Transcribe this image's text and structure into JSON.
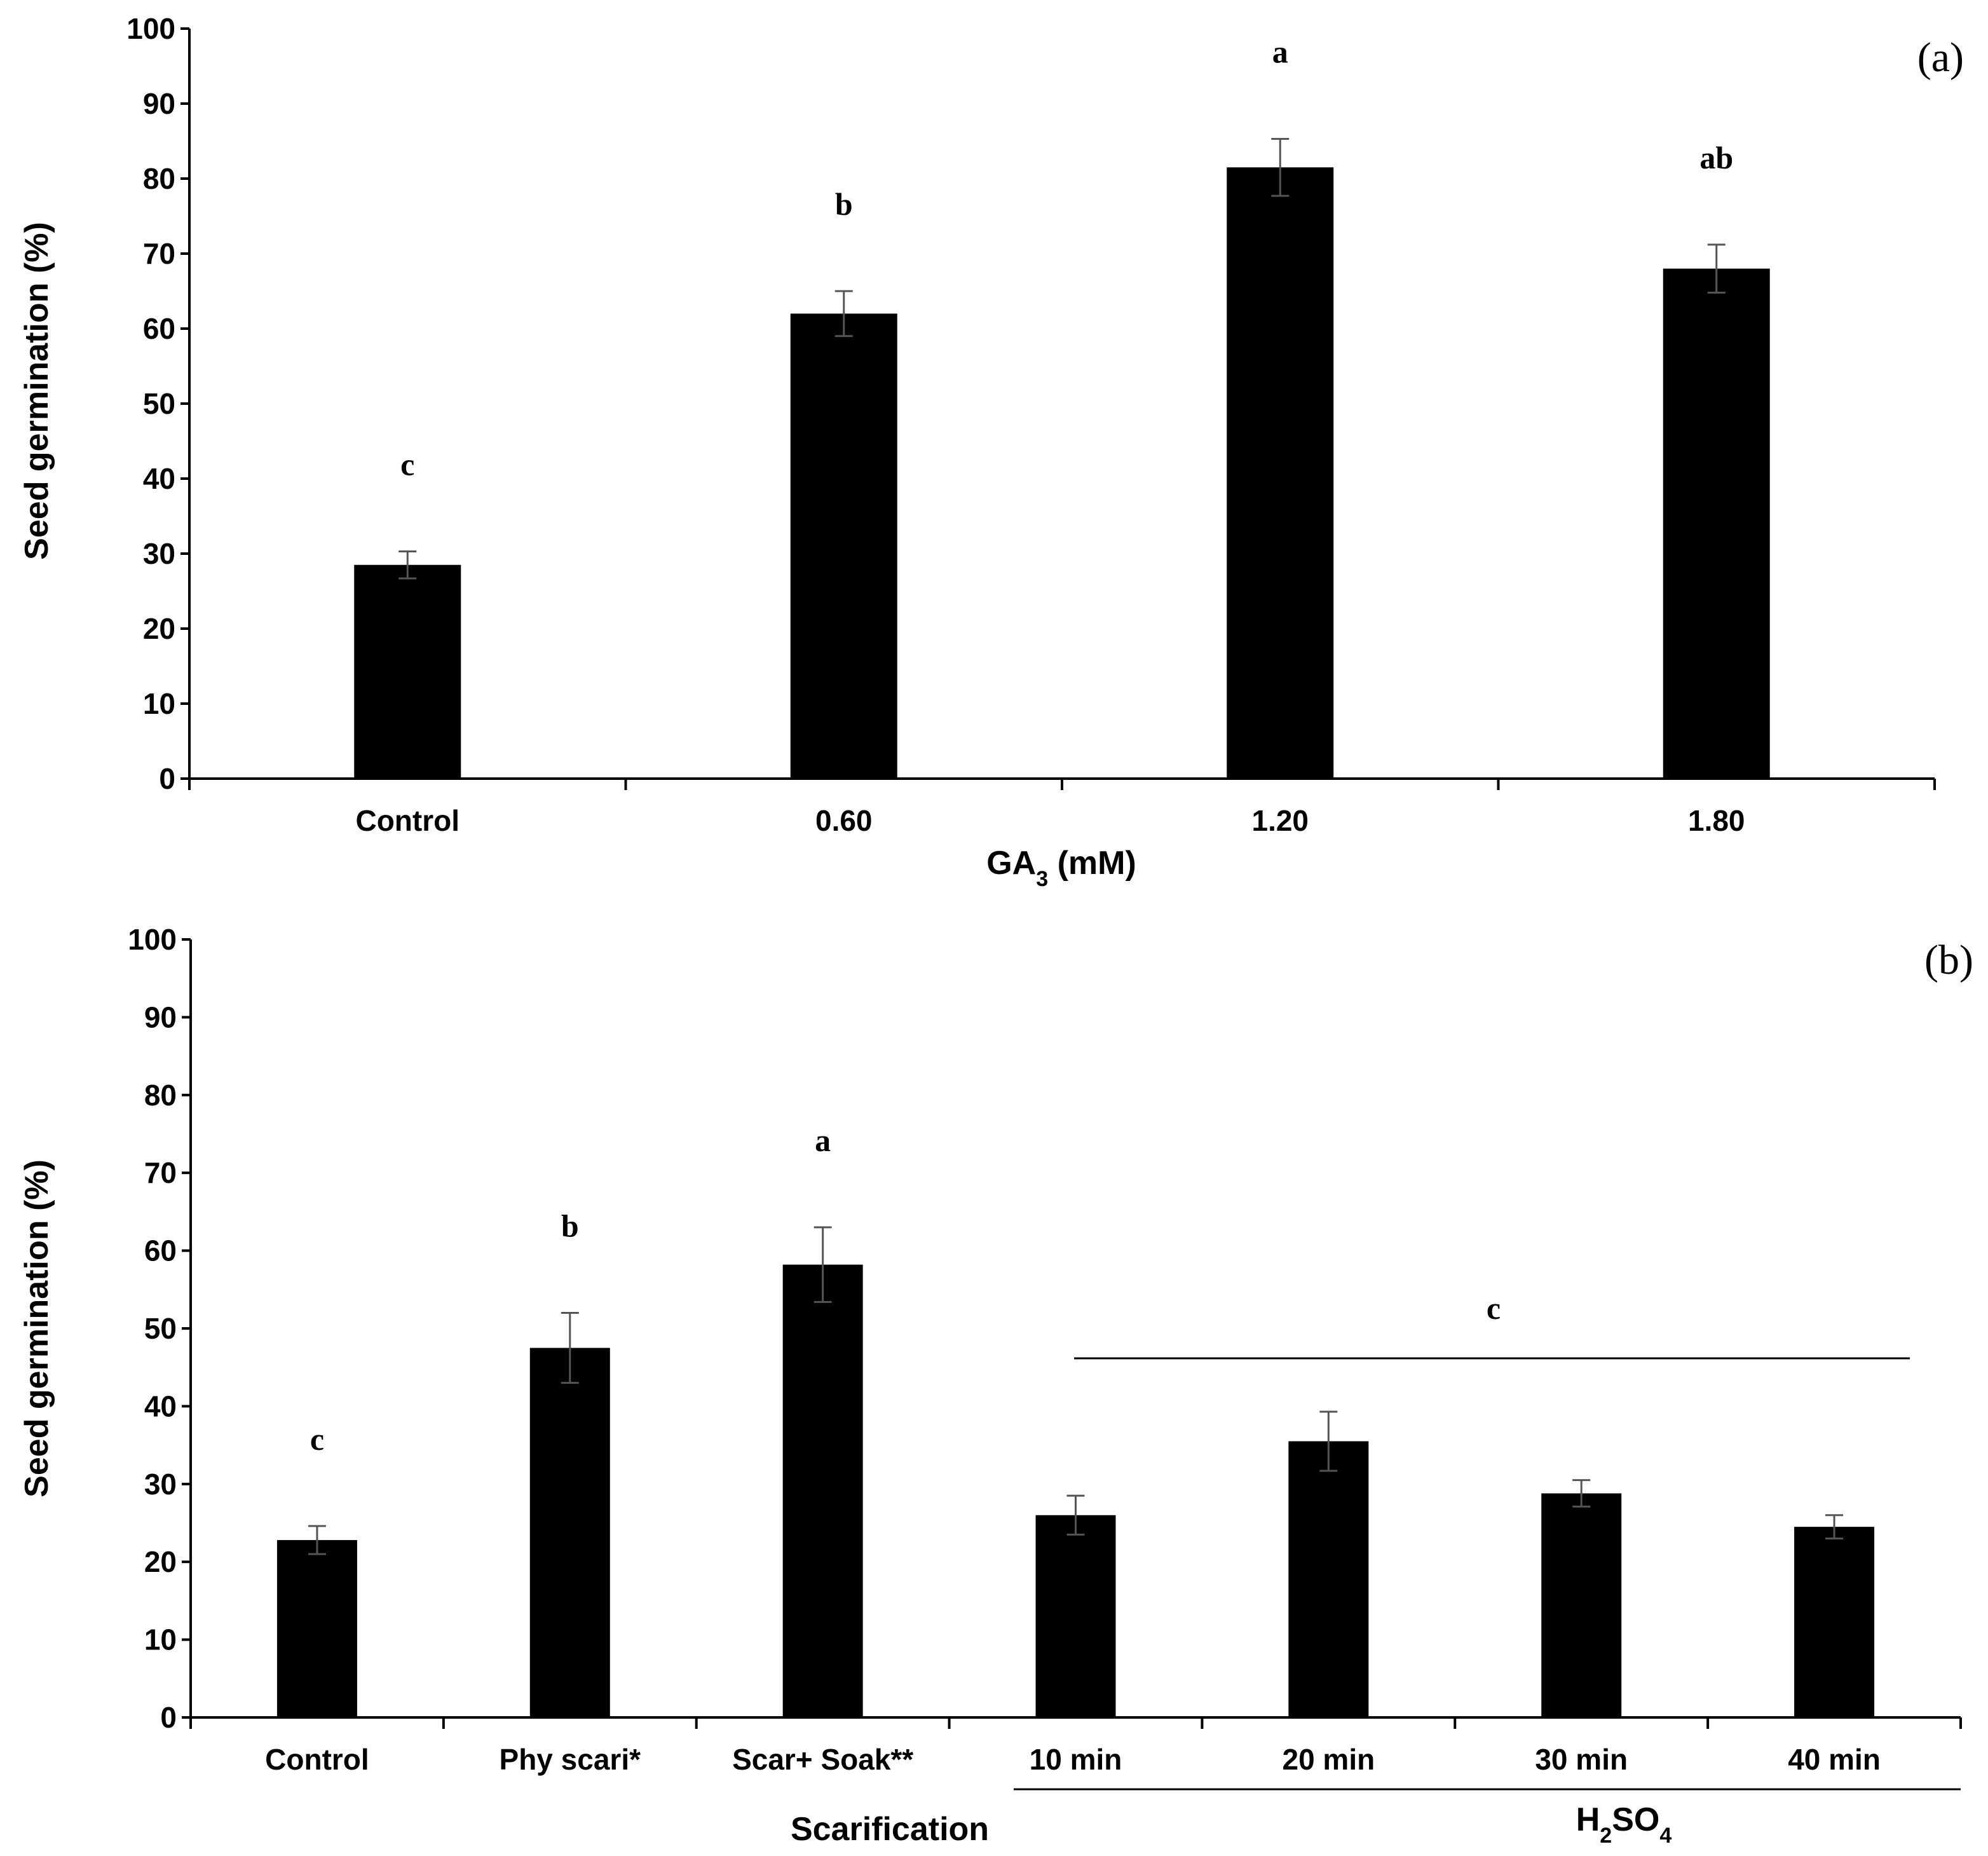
{
  "chart_data": [
    {
      "type": "bar",
      "panel_label": "(a)",
      "xlabel": "GA₃ (mM)",
      "ylabel": "Seed germination (%)",
      "ylim": [
        0,
        100
      ],
      "yticks": [
        "0",
        "10",
        "20",
        "30",
        "40",
        "50",
        "60",
        "70",
        "80",
        "90",
        "100"
      ],
      "categories": [
        "Control",
        "0.60",
        "1.20",
        "1.80"
      ],
      "values": [
        28.5,
        62,
        81.5,
        68
      ],
      "errors": [
        1.8,
        3,
        3.8,
        3.2
      ],
      "significance": [
        "c",
        "b",
        "a",
        "ab"
      ]
    },
    {
      "type": "bar",
      "panel_label": "(b)",
      "xlabel": "Scarification",
      "ylabel": "Seed germination (%)",
      "ylim": [
        0,
        100
      ],
      "yticks": [
        "0",
        "10",
        "20",
        "30",
        "40",
        "50",
        "60",
        "70",
        "80",
        "90",
        "100"
      ],
      "categories": [
        "Control",
        "Phy scari*",
        "Scar+ Soak**",
        "10 min",
        "20 min",
        "30 min",
        "40 min"
      ],
      "values": [
        22.8,
        47.5,
        58.2,
        26,
        35.5,
        28.8,
        24.5
      ],
      "errors": [
        1.8,
        4.5,
        4.8,
        2.5,
        3.8,
        1.7,
        1.5
      ],
      "significance": [
        "c",
        "b",
        "a"
      ],
      "group_label": "H₂SO₄",
      "group_significance": "c"
    }
  ]
}
